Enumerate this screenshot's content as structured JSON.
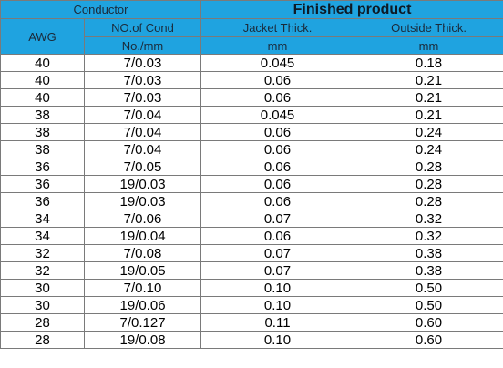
{
  "header": {
    "conductor": "Conductor",
    "finished_product": "Finished product",
    "awg": "AWG",
    "no_of_cond": "NO.of Cond",
    "jacket_thick": "Jacket Thick.",
    "outside_thick": "Outside Thick.",
    "no_mm": "No./mm",
    "jacket_unit": "mm",
    "outside_unit": "mm"
  },
  "rows": [
    {
      "awg": "40",
      "cond": "7/0.03",
      "jacket": "0.045",
      "outside": "0.18"
    },
    {
      "awg": "40",
      "cond": "7/0.03",
      "jacket": "0.06",
      "outside": "0.21"
    },
    {
      "awg": "40",
      "cond": "7/0.03",
      "jacket": "0.06",
      "outside": "0.21"
    },
    {
      "awg": "38",
      "cond": "7/0.04",
      "jacket": "0.045",
      "outside": "0.21"
    },
    {
      "awg": "38",
      "cond": "7/0.04",
      "jacket": "0.06",
      "outside": "0.24"
    },
    {
      "awg": "38",
      "cond": "7/0.04",
      "jacket": "0.06",
      "outside": "0.24"
    },
    {
      "awg": "36",
      "cond": "7/0.05",
      "jacket": "0.06",
      "outside": "0.28"
    },
    {
      "awg": "36",
      "cond": "19/0.03",
      "jacket": "0.06",
      "outside": "0.28"
    },
    {
      "awg": "36",
      "cond": "19/0.03",
      "jacket": "0.06",
      "outside": "0.28"
    },
    {
      "awg": "34",
      "cond": "7/0.06",
      "jacket": "0.07",
      "outside": "0.32"
    },
    {
      "awg": "34",
      "cond": "19/0.04",
      "jacket": "0.06",
      "outside": "0.32"
    },
    {
      "awg": "32",
      "cond": "7/0.08",
      "jacket": "0.07",
      "outside": "0.38"
    },
    {
      "awg": "32",
      "cond": "19/0.05",
      "jacket": "0.07",
      "outside": "0.38"
    },
    {
      "awg": "30",
      "cond": "7/0.10",
      "jacket": "0.10",
      "outside": "0.50"
    },
    {
      "awg": "30",
      "cond": "19/0.06",
      "jacket": "0.10",
      "outside": "0.50"
    },
    {
      "awg": "28",
      "cond": "7/0.127",
      "jacket": "0.11",
      "outside": "0.60"
    },
    {
      "awg": "28",
      "cond": "19/0.08",
      "jacket": "0.10",
      "outside": "0.60"
    }
  ]
}
